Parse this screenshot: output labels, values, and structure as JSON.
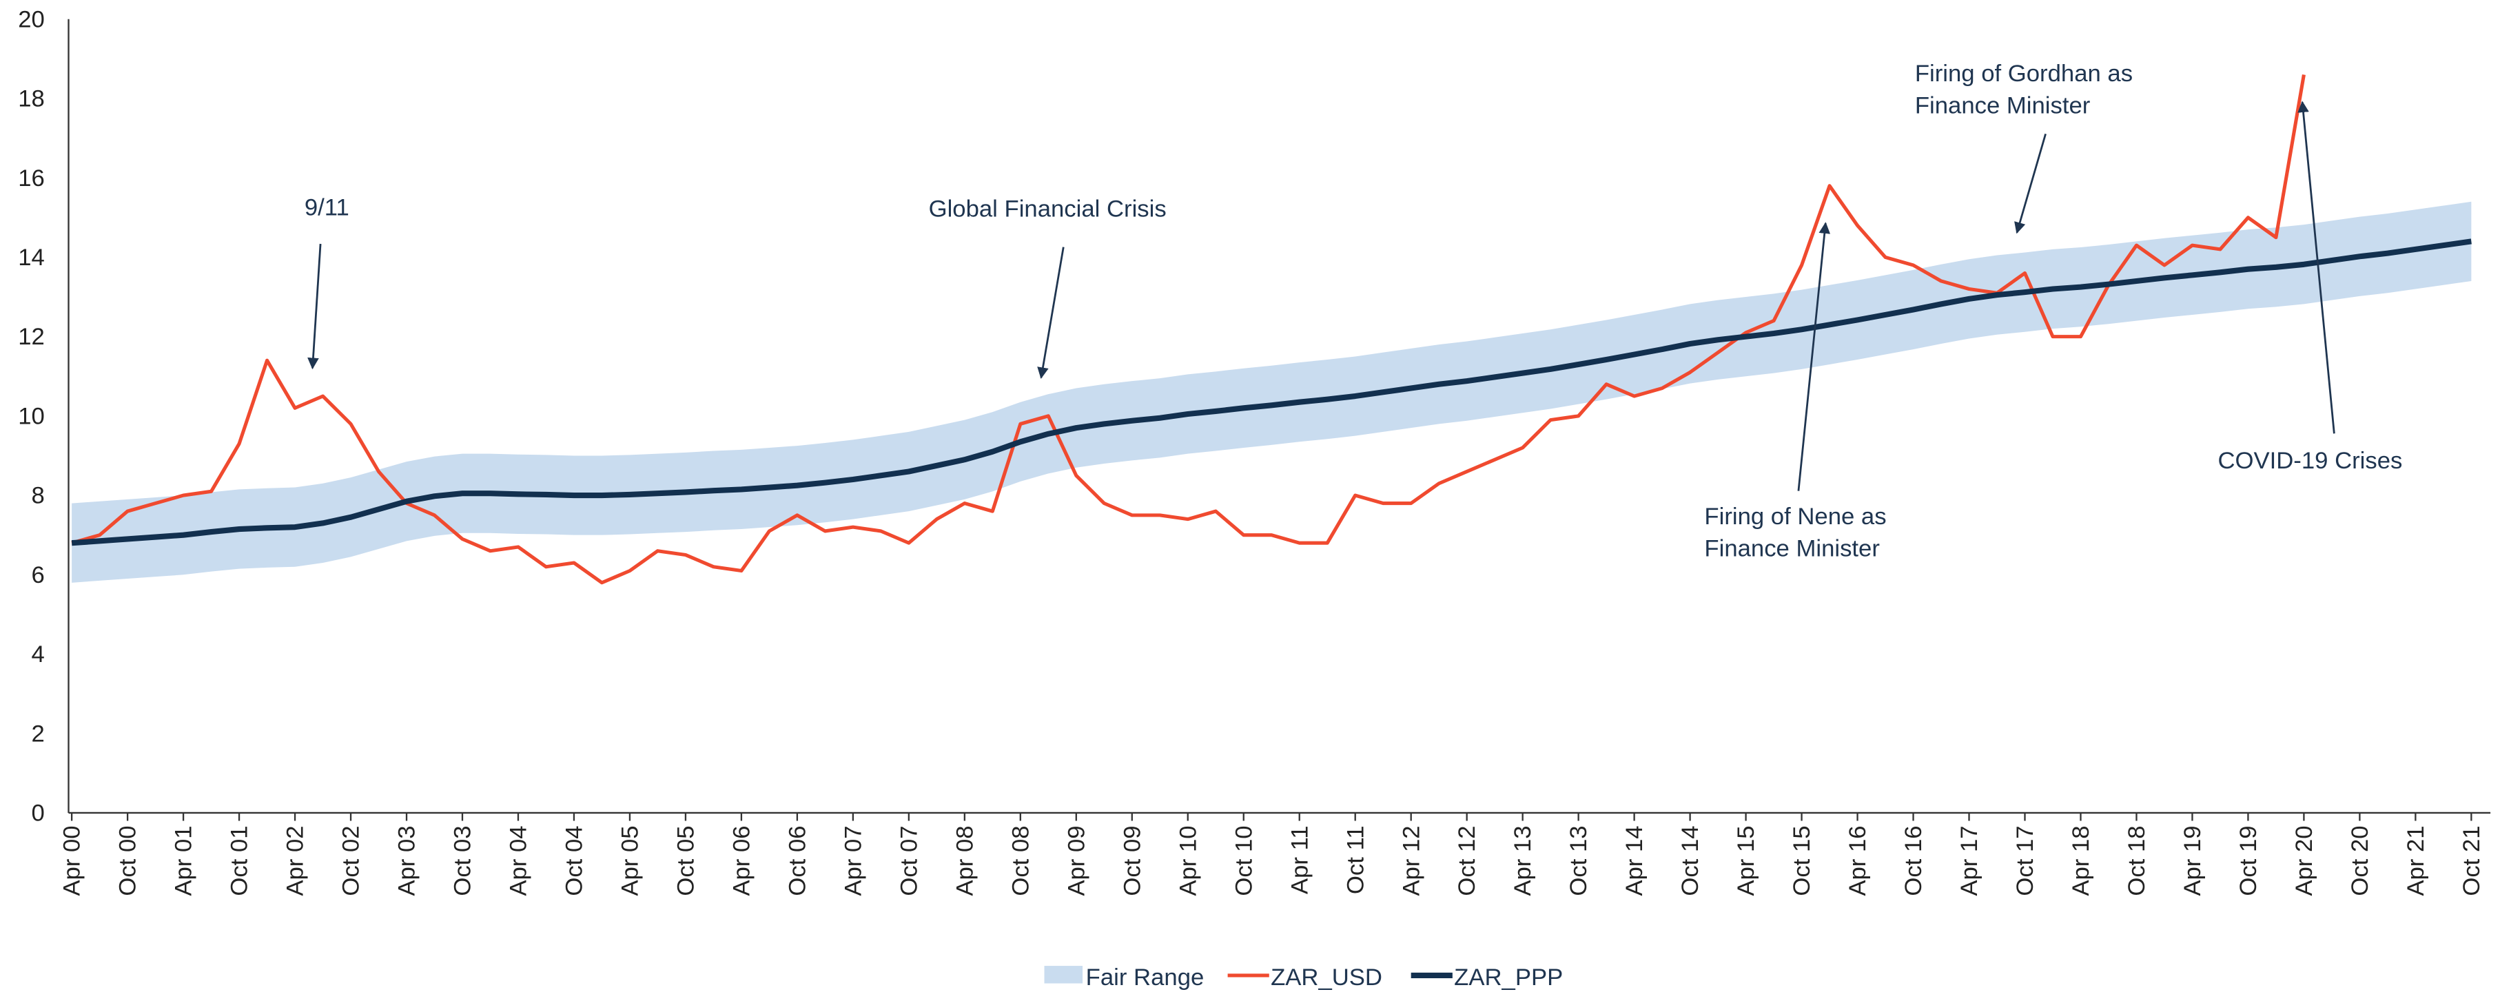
{
  "chart_data": {
    "type": "line",
    "categories": [
      "Apr 00",
      null,
      "Oct 00",
      null,
      "Apr 01",
      null,
      "Oct 01",
      null,
      "Apr 02",
      null,
      "Oct 02",
      null,
      "Apr 03",
      null,
      "Oct 03",
      null,
      "Apr 04",
      null,
      "Oct 04",
      null,
      "Apr 05",
      null,
      "Oct 05",
      null,
      "Apr 06",
      null,
      "Oct 06",
      null,
      "Apr 07",
      null,
      "Oct 07",
      null,
      "Apr 08",
      null,
      "Oct 08",
      null,
      "Apr 09",
      null,
      "Oct 09",
      null,
      "Apr 10",
      null,
      "Oct 10",
      null,
      "Apr 11",
      null,
      "Oct 11",
      null,
      "Apr 12",
      null,
      "Oct 12",
      null,
      "Apr 13",
      null,
      "Oct 13",
      null,
      "Apr 14",
      null,
      "Oct 14",
      null,
      "Apr 15",
      null,
      "Oct 15",
      null,
      "Apr 16",
      null,
      "Oct 16",
      null,
      "Apr 17",
      null,
      "Oct 17",
      null,
      "Apr 18",
      null,
      "Oct 18",
      null,
      "Apr 19",
      null,
      "Oct 19",
      null,
      "Apr 20",
      null,
      "Oct 20",
      null,
      "Apr 21",
      null,
      "Oct 21"
    ],
    "band": {
      "name": "Fair Range",
      "color": "#c9dcef",
      "lower": [
        5.8,
        5.85,
        5.9,
        5.95,
        6.0,
        6.08,
        6.15,
        6.18,
        6.2,
        6.3,
        6.45,
        6.65,
        6.85,
        6.98,
        7.05,
        7.05,
        7.03,
        7.02,
        7.0,
        7.0,
        7.02,
        7.05,
        7.08,
        7.12,
        7.15,
        7.2,
        7.25,
        7.32,
        7.4,
        7.5,
        7.6,
        7.75,
        7.9,
        8.1,
        8.35,
        8.55,
        8.7,
        8.8,
        8.88,
        8.95,
        9.05,
        9.12,
        9.2,
        9.27,
        9.35,
        9.42,
        9.5,
        9.6,
        9.7,
        9.8,
        9.88,
        9.98,
        10.08,
        10.18,
        10.3,
        10.42,
        10.55,
        10.68,
        10.82,
        10.92,
        11.0,
        11.08,
        11.18,
        11.3,
        11.42,
        11.55,
        11.68,
        11.82,
        11.95,
        12.05,
        12.12,
        12.2,
        12.25,
        12.32,
        12.4,
        12.48,
        12.55,
        12.62,
        12.7,
        12.75,
        12.82,
        12.92,
        13.02,
        13.1,
        13.2,
        13.3,
        13.4
      ],
      "upper": [
        7.8,
        7.85,
        7.9,
        7.95,
        8.0,
        8.08,
        8.15,
        8.18,
        8.2,
        8.3,
        8.45,
        8.65,
        8.85,
        8.98,
        9.05,
        9.05,
        9.03,
        9.02,
        9.0,
        9.0,
        9.02,
        9.05,
        9.08,
        9.12,
        9.15,
        9.2,
        9.25,
        9.32,
        9.4,
        9.5,
        9.6,
        9.75,
        9.9,
        10.1,
        10.35,
        10.55,
        10.7,
        10.8,
        10.88,
        10.95,
        11.05,
        11.12,
        11.2,
        11.27,
        11.35,
        11.42,
        11.5,
        11.6,
        11.7,
        11.8,
        11.88,
        11.98,
        12.08,
        12.18,
        12.3,
        12.42,
        12.55,
        12.68,
        12.82,
        12.92,
        13.0,
        13.08,
        13.18,
        13.3,
        13.42,
        13.55,
        13.68,
        13.82,
        13.95,
        14.05,
        14.12,
        14.2,
        14.25,
        14.32,
        14.4,
        14.48,
        14.55,
        14.62,
        14.7,
        14.75,
        14.82,
        14.92,
        15.02,
        15.1,
        15.2,
        15.3,
        15.4
      ]
    },
    "series": [
      {
        "name": "ZAR_USD",
        "color": "#f04a2f",
        "width": 2.2,
        "values": [
          6.8,
          7.0,
          7.6,
          7.8,
          8.0,
          8.1,
          9.3,
          11.4,
          10.2,
          10.5,
          9.8,
          8.6,
          7.8,
          7.5,
          6.9,
          6.6,
          6.7,
          6.2,
          6.3,
          5.8,
          6.1,
          6.6,
          6.5,
          6.2,
          6.1,
          7.1,
          7.5,
          7.1,
          7.2,
          7.1,
          6.8,
          7.4,
          7.8,
          7.6,
          9.8,
          10.0,
          8.5,
          7.8,
          7.5,
          7.5,
          7.4,
          7.6,
          7.0,
          7.0,
          6.8,
          6.8,
          8.0,
          7.8,
          7.8,
          8.3,
          8.6,
          8.9,
          9.2,
          9.9,
          10.0,
          10.8,
          10.5,
          10.7,
          11.1,
          11.6,
          12.1,
          12.4,
          13.8,
          15.8,
          14.8,
          14.0,
          13.8,
          13.4,
          13.2,
          13.1,
          13.6,
          12.0,
          12.0,
          13.3,
          14.3,
          13.8,
          14.3,
          14.2,
          15.0,
          14.5,
          18.6,
          null,
          null,
          null,
          null,
          null,
          null
        ]
      },
      {
        "name": "ZAR_PPP",
        "color": "#12304f",
        "width": 3.5,
        "values": [
          6.8,
          6.85,
          6.9,
          6.95,
          7.0,
          7.08,
          7.15,
          7.18,
          7.2,
          7.3,
          7.45,
          7.65,
          7.85,
          7.98,
          8.05,
          8.05,
          8.03,
          8.02,
          8.0,
          8.0,
          8.02,
          8.05,
          8.08,
          8.12,
          8.15,
          8.2,
          8.25,
          8.32,
          8.4,
          8.5,
          8.6,
          8.75,
          8.9,
          9.1,
          9.35,
          9.55,
          9.7,
          9.8,
          9.88,
          9.95,
          10.05,
          10.12,
          10.2,
          10.27,
          10.35,
          10.42,
          10.5,
          10.6,
          10.7,
          10.8,
          10.88,
          10.98,
          11.08,
          11.18,
          11.3,
          11.42,
          11.55,
          11.68,
          11.82,
          11.92,
          12.0,
          12.08,
          12.18,
          12.3,
          12.42,
          12.55,
          12.68,
          12.82,
          12.95,
          13.05,
          13.12,
          13.2,
          13.25,
          13.32,
          13.4,
          13.48,
          13.55,
          13.62,
          13.7,
          13.75,
          13.82,
          13.92,
          14.02,
          14.1,
          14.2,
          14.3,
          14.4
        ]
      }
    ],
    "ylim": [
      0,
      20
    ],
    "yticks": [
      0,
      2,
      4,
      6,
      8,
      10,
      12,
      14,
      16,
      18,
      20
    ],
    "annotations": [
      [
        "9/11"
      ],
      [
        "Global Financial Crisis"
      ],
      [
        "Firing of Nene as",
        "Finance Minister"
      ],
      [
        "Firing of Gordhan as",
        "Finance Minister"
      ],
      [
        "COVID-19 Crises"
      ]
    ]
  }
}
